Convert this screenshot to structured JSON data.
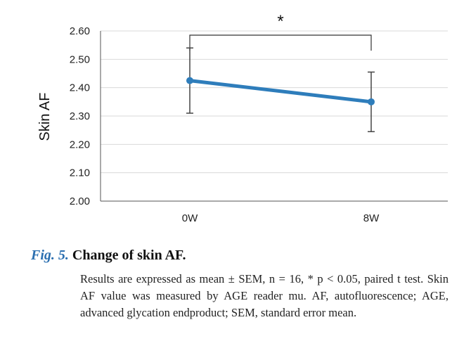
{
  "chart_data": {
    "type": "line",
    "categories": [
      "0W",
      "8W"
    ],
    "series": [
      {
        "values": [
          2.425,
          2.35
        ],
        "error_upper": [
          2.54,
          2.455
        ],
        "error_lower": [
          2.31,
          2.245
        ],
        "color": "#2e7dbb"
      }
    ],
    "ylabel": "Skin AF",
    "xlabel": "",
    "ylim": [
      2.0,
      2.6
    ],
    "yticks": [
      "2.00",
      "2.10",
      "2.20",
      "2.30",
      "2.40",
      "2.50",
      "2.60"
    ],
    "grid": "horizontal",
    "annotations": [
      {
        "text": "*",
        "between": [
          "0W",
          "8W"
        ]
      }
    ]
  },
  "caption": {
    "label": "Fig. 5.",
    "title": "Change of skin AF.",
    "body": "Results are expressed as mean ± SEM, n = 16, * p < 0.05, paired t test. Skin AF value was measured by AGE reader mu. AF, autofluorescence; AGE, advanced glycation endproduct; SEM, standard error mean."
  }
}
